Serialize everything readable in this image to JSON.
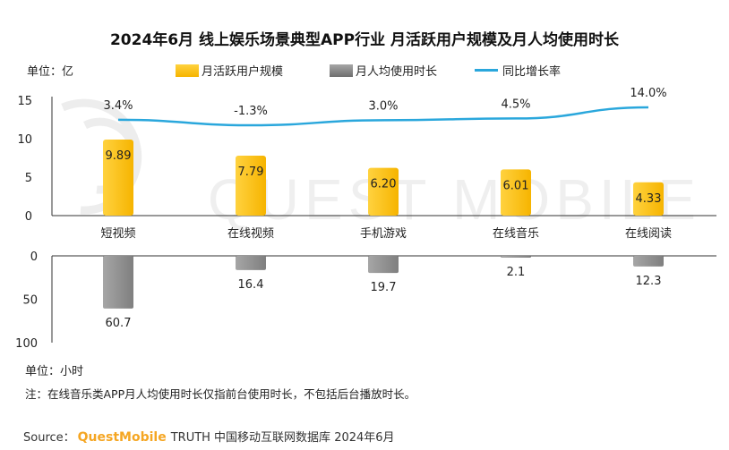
{
  "title": "2024年6月 线上娱乐场景典型APP行业 月活跃用户规模及月人均使用时长",
  "top_unit": "单位：亿",
  "bottom_unit": "单位：小时",
  "note": "注：在线音乐类APP月人均使用时长仅指前台使用时长，不包括后台播放时长。",
  "source": {
    "prefix": "Source：",
    "brand": "QuestMobile",
    "rest": "TRUTH 中国移动互联网数据库 2024年6月"
  },
  "watermark": "QUEST MOBILE",
  "colors": {
    "mau_bar": "#f6b400",
    "mau_bar_light": "#ffd23f",
    "time_bar": "#7f7f7f",
    "time_bar_light": "#a6a6a6",
    "line": "#2aa7dc"
  },
  "chart_data": {
    "type": "bar",
    "categories": [
      "短视频",
      "在线视频",
      "手机游戏",
      "在线音乐",
      "在线阅读"
    ],
    "series": [
      {
        "name": "月活跃用户规模",
        "type": "bar",
        "unit": "亿",
        "values": [
          9.89,
          7.79,
          6.2,
          6.01,
          4.33
        ],
        "labels": [
          "9.89",
          "7.79",
          "6.20",
          "6.01",
          "4.33"
        ]
      },
      {
        "name": "月人均使用时长",
        "type": "bar",
        "unit": "小时",
        "values": [
          60.7,
          16.4,
          19.7,
          2.1,
          12.3
        ],
        "labels": [
          "60.7",
          "16.4",
          "19.7",
          "2.1",
          "12.3"
        ]
      },
      {
        "name": "同比增长率",
        "type": "line",
        "unit": "%",
        "values": [
          3.4,
          -1.3,
          3.0,
          4.5,
          14.0
        ],
        "labels": [
          "3.4%",
          "-1.3%",
          "3.0%",
          "4.5%",
          "14.0%"
        ]
      }
    ],
    "top_axis": {
      "ticks": [
        "15",
        "10",
        "5",
        "0"
      ],
      "ylim": [
        0,
        15
      ]
    },
    "bottom_axis": {
      "ticks": [
        "0",
        "50",
        "100"
      ],
      "ylim": [
        0,
        100
      ]
    },
    "legend_position": "top"
  }
}
